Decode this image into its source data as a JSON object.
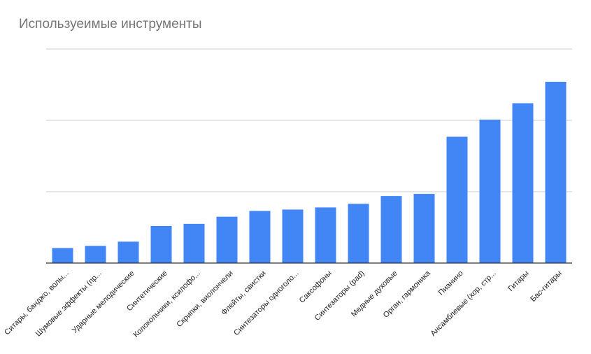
{
  "chart_data": {
    "type": "bar",
    "title": "Используеимые инструменты",
    "xlabel": "",
    "ylabel": "",
    "ylim": [
      0,
      3
    ],
    "grid": true,
    "color": "#4285f4",
    "categories": [
      "Ситары, банджо, волы...",
      "Шумовые эффекты (пр...",
      "Ударные мелодические",
      "Синтетические",
      "Колокольчики, ксилофо...",
      "Скрипки, виолончели",
      "Флейты, свистки",
      "Синтезаторы одноголо...",
      "Саксофоны",
      "Синтезаторы (pad)",
      "Медные духовые",
      "Орган, гармоника",
      "Пианино",
      "Ансамблевые (хор, стр...",
      "Гитары",
      "Бас-гитары"
    ],
    "values": [
      0.21,
      0.24,
      0.3,
      0.52,
      0.55,
      0.65,
      0.73,
      0.75,
      0.78,
      0.83,
      0.94,
      0.97,
      1.77,
      2.01,
      2.24,
      2.54
    ]
  }
}
